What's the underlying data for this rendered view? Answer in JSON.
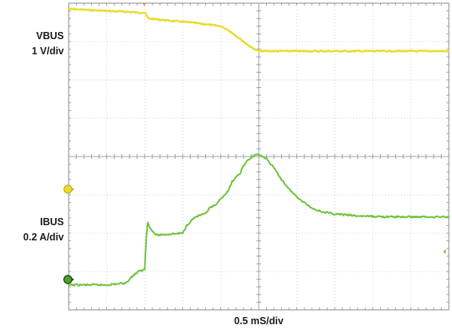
{
  "chart_data": {
    "type": "line",
    "title": "",
    "xlabel": "0.5 mS/div",
    "x_divisions": 10,
    "y_divisions": 8,
    "x_unit": "mS",
    "x_per_div": 0.5,
    "xlim": [
      0,
      5.0
    ],
    "grid": true,
    "series": [
      {
        "name": "VBUS",
        "scale_label": "1 V/div",
        "color": "#e6dc2a",
        "offset_div": 4.45,
        "volts_per_div": 1,
        "x": [
          0,
          0.5,
          1.0,
          1.05,
          1.2,
          1.4,
          1.6,
          1.8,
          2.0,
          2.1,
          2.2,
          2.3,
          2.4,
          2.45,
          2.5,
          2.6,
          3.0,
          4.0,
          5.0
        ],
        "y": [
          3.4,
          3.35,
          3.3,
          3.15,
          3.12,
          3.08,
          3.05,
          3.0,
          2.95,
          2.85,
          2.7,
          2.55,
          2.4,
          2.35,
          2.3,
          2.3,
          2.3,
          2.3,
          2.3
        ]
      },
      {
        "name": "IBUS",
        "scale_label": "0.2 A/div",
        "color": "#6cc33a",
        "offset_div": 0.65,
        "amps_per_div": 0.2,
        "x": [
          0,
          0.5,
          0.75,
          0.85,
          0.92,
          1.0,
          1.02,
          1.04,
          1.08,
          1.15,
          1.5,
          1.55,
          1.6,
          1.65,
          1.7,
          1.8,
          1.85,
          1.9,
          1.95,
          2.0,
          2.05,
          2.1,
          2.15,
          2.2,
          2.25,
          2.3,
          2.35,
          2.4,
          2.45,
          2.5,
          2.6,
          2.7,
          2.8,
          2.9,
          3.0,
          3.1,
          3.2,
          3.35,
          3.5,
          3.8,
          4.2,
          5.0
        ],
        "y": [
          0,
          0,
          0.01,
          0.05,
          0.07,
          0.08,
          0.24,
          0.33,
          0.29,
          0.26,
          0.27,
          0.31,
          0.33,
          0.35,
          0.36,
          0.37,
          0.4,
          0.41,
          0.42,
          0.45,
          0.47,
          0.49,
          0.54,
          0.56,
          0.58,
          0.62,
          0.65,
          0.66,
          0.68,
          0.68,
          0.66,
          0.61,
          0.55,
          0.5,
          0.46,
          0.43,
          0.4,
          0.38,
          0.37,
          0.36,
          0.355,
          0.355
        ]
      }
    ]
  }
}
